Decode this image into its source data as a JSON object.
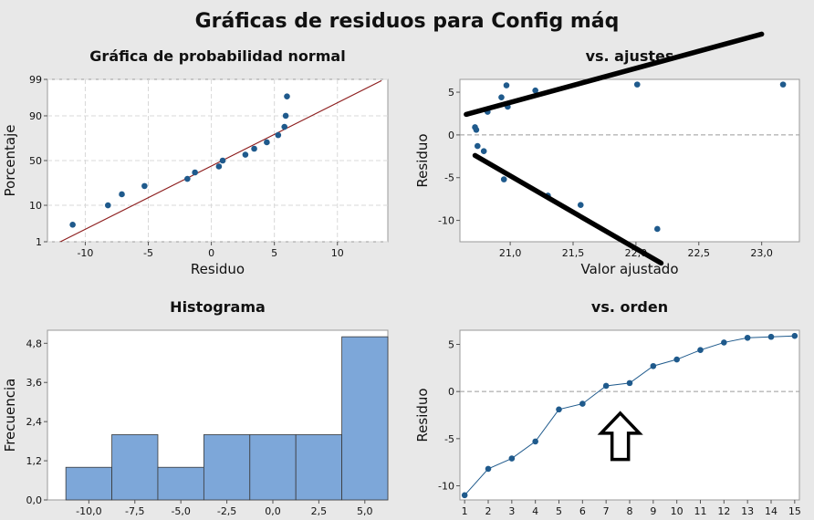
{
  "title": "Gráficas de residuos para Config máq",
  "colors": {
    "figure_bg": "#e8e8e8",
    "plot_bg": "#ffffff",
    "point": "#1f5a8c",
    "ref_line": "#8b1a1a",
    "bar_fill": "#7da7d9",
    "bar_stroke": "#3a3a3a",
    "grid": "#d8d8d8",
    "zero_line": "#9a9a9a",
    "annotation": "#000000"
  },
  "chart_data": [
    {
      "id": "normal",
      "type": "scatter",
      "title": "Gráfica de probabilidad normal",
      "xlabel": "Residuo",
      "ylabel": "Porcentaje",
      "xlim": [
        -13,
        14
      ],
      "xticks": [
        -10,
        -5,
        0,
        5,
        10
      ],
      "ylim": [
        1,
        99
      ],
      "yscale": "probability",
      "yticks": [
        1,
        10,
        50,
        90,
        99
      ],
      "grid": true,
      "reference_line": {
        "x": [
          -13,
          13.5
        ],
        "y": [
          0.6,
          98.9
        ]
      },
      "points": [
        {
          "x": -11.0,
          "y": 3.3
        },
        {
          "x": -8.2,
          "y": 10.0
        },
        {
          "x": -7.1,
          "y": 16.7
        },
        {
          "x": -5.3,
          "y": 23.3
        },
        {
          "x": -1.9,
          "y": 30.0
        },
        {
          "x": -1.3,
          "y": 36.7
        },
        {
          "x": 0.6,
          "y": 43.3
        },
        {
          "x": 0.9,
          "y": 50.0
        },
        {
          "x": 2.7,
          "y": 56.7
        },
        {
          "x": 3.4,
          "y": 63.3
        },
        {
          "x": 4.4,
          "y": 70.0
        },
        {
          "x": 5.3,
          "y": 76.7
        },
        {
          "x": 5.8,
          "y": 83.3
        },
        {
          "x": 5.9,
          "y": 90.0
        },
        {
          "x": 6.0,
          "y": 96.7
        }
      ]
    },
    {
      "id": "fits",
      "type": "scatter",
      "title": "vs. ajustes",
      "xlabel": "Valor ajustado",
      "ylabel": "Residuo",
      "xlim": [
        20.6,
        23.3
      ],
      "xticks": [
        21.0,
        21.5,
        22.0,
        22.5,
        23.0
      ],
      "ylim": [
        -12.5,
        6.5
      ],
      "yticks": [
        -10,
        -5,
        0,
        5
      ],
      "reference_line_y": 0,
      "points": [
        {
          "x": 20.72,
          "y": 0.9
        },
        {
          "x": 20.73,
          "y": 0.6
        },
        {
          "x": 20.74,
          "y": -1.3
        },
        {
          "x": 20.79,
          "y": -1.9
        },
        {
          "x": 20.82,
          "y": 2.7
        },
        {
          "x": 20.93,
          "y": 4.4
        },
        {
          "x": 20.95,
          "y": -5.2
        },
        {
          "x": 20.97,
          "y": 5.8
        },
        {
          "x": 20.98,
          "y": 3.3
        },
        {
          "x": 21.2,
          "y": 5.2
        },
        {
          "x": 21.3,
          "y": -7.1
        },
        {
          "x": 21.56,
          "y": -8.2
        },
        {
          "x": 22.01,
          "y": 5.9
        },
        {
          "x": 22.17,
          "y": -11.0
        },
        {
          "x": 23.17,
          "y": 5.9
        }
      ],
      "annotations": [
        {
          "type": "line",
          "x": [
            20.65,
            23.0
          ],
          "y": [
            2.4,
            11.8
          ]
        },
        {
          "type": "line",
          "x": [
            20.72,
            22.2
          ],
          "y": [
            -2.4,
            -15.0
          ]
        }
      ]
    },
    {
      "id": "hist",
      "type": "bar",
      "title": "Histograma",
      "xlabel": "",
      "ylabel": "Frecuencia",
      "xlim": [
        -12.25,
        6.25
      ],
      "xticks": [
        "-10,0",
        "-7,5",
        "-5,0",
        "-2,5",
        "0,0",
        "2,5",
        "5,0"
      ],
      "xtick_values": [
        -10,
        -7.5,
        -5,
        -2.5,
        0,
        2.5,
        5
      ],
      "ylim": [
        0,
        5.2
      ],
      "yticks": [
        "0,0",
        "1,2",
        "2,4",
        "3,6",
        "4,8"
      ],
      "ytick_values": [
        0,
        1.2,
        2.4,
        3.6,
        4.8
      ],
      "bin_width": 2.5,
      "bins": [
        {
          "center": -10.0,
          "count": 1
        },
        {
          "center": -7.5,
          "count": 2
        },
        {
          "center": -5.0,
          "count": 1
        },
        {
          "center": -2.5,
          "count": 2
        },
        {
          "center": 0.0,
          "count": 2
        },
        {
          "center": 2.5,
          "count": 2
        },
        {
          "center": 5.0,
          "count": 5
        }
      ]
    },
    {
      "id": "order",
      "type": "line",
      "title": "vs. orden",
      "xlabel": "",
      "ylabel": "Residuo",
      "xlim": [
        0.8,
        15.2
      ],
      "xticks": [
        1,
        2,
        3,
        4,
        5,
        6,
        7,
        8,
        9,
        10,
        11,
        12,
        13,
        14,
        15
      ],
      "ylim": [
        -11.5,
        6.5
      ],
      "yticks": [
        -10,
        -5,
        0,
        5
      ],
      "reference_line_y": 0,
      "x": [
        1,
        2,
        3,
        4,
        5,
        6,
        7,
        8,
        9,
        10,
        11,
        12,
        13,
        14,
        15
      ],
      "y": [
        -11.0,
        -8.2,
        -7.1,
        -5.3,
        -1.9,
        -1.3,
        0.6,
        0.9,
        2.7,
        3.4,
        4.4,
        5.2,
        5.7,
        5.8,
        5.9
      ],
      "annotations": [
        {
          "type": "up-arrow",
          "x": 7.6,
          "y_tip": -2.3,
          "y_base": -7.2
        }
      ]
    }
  ]
}
